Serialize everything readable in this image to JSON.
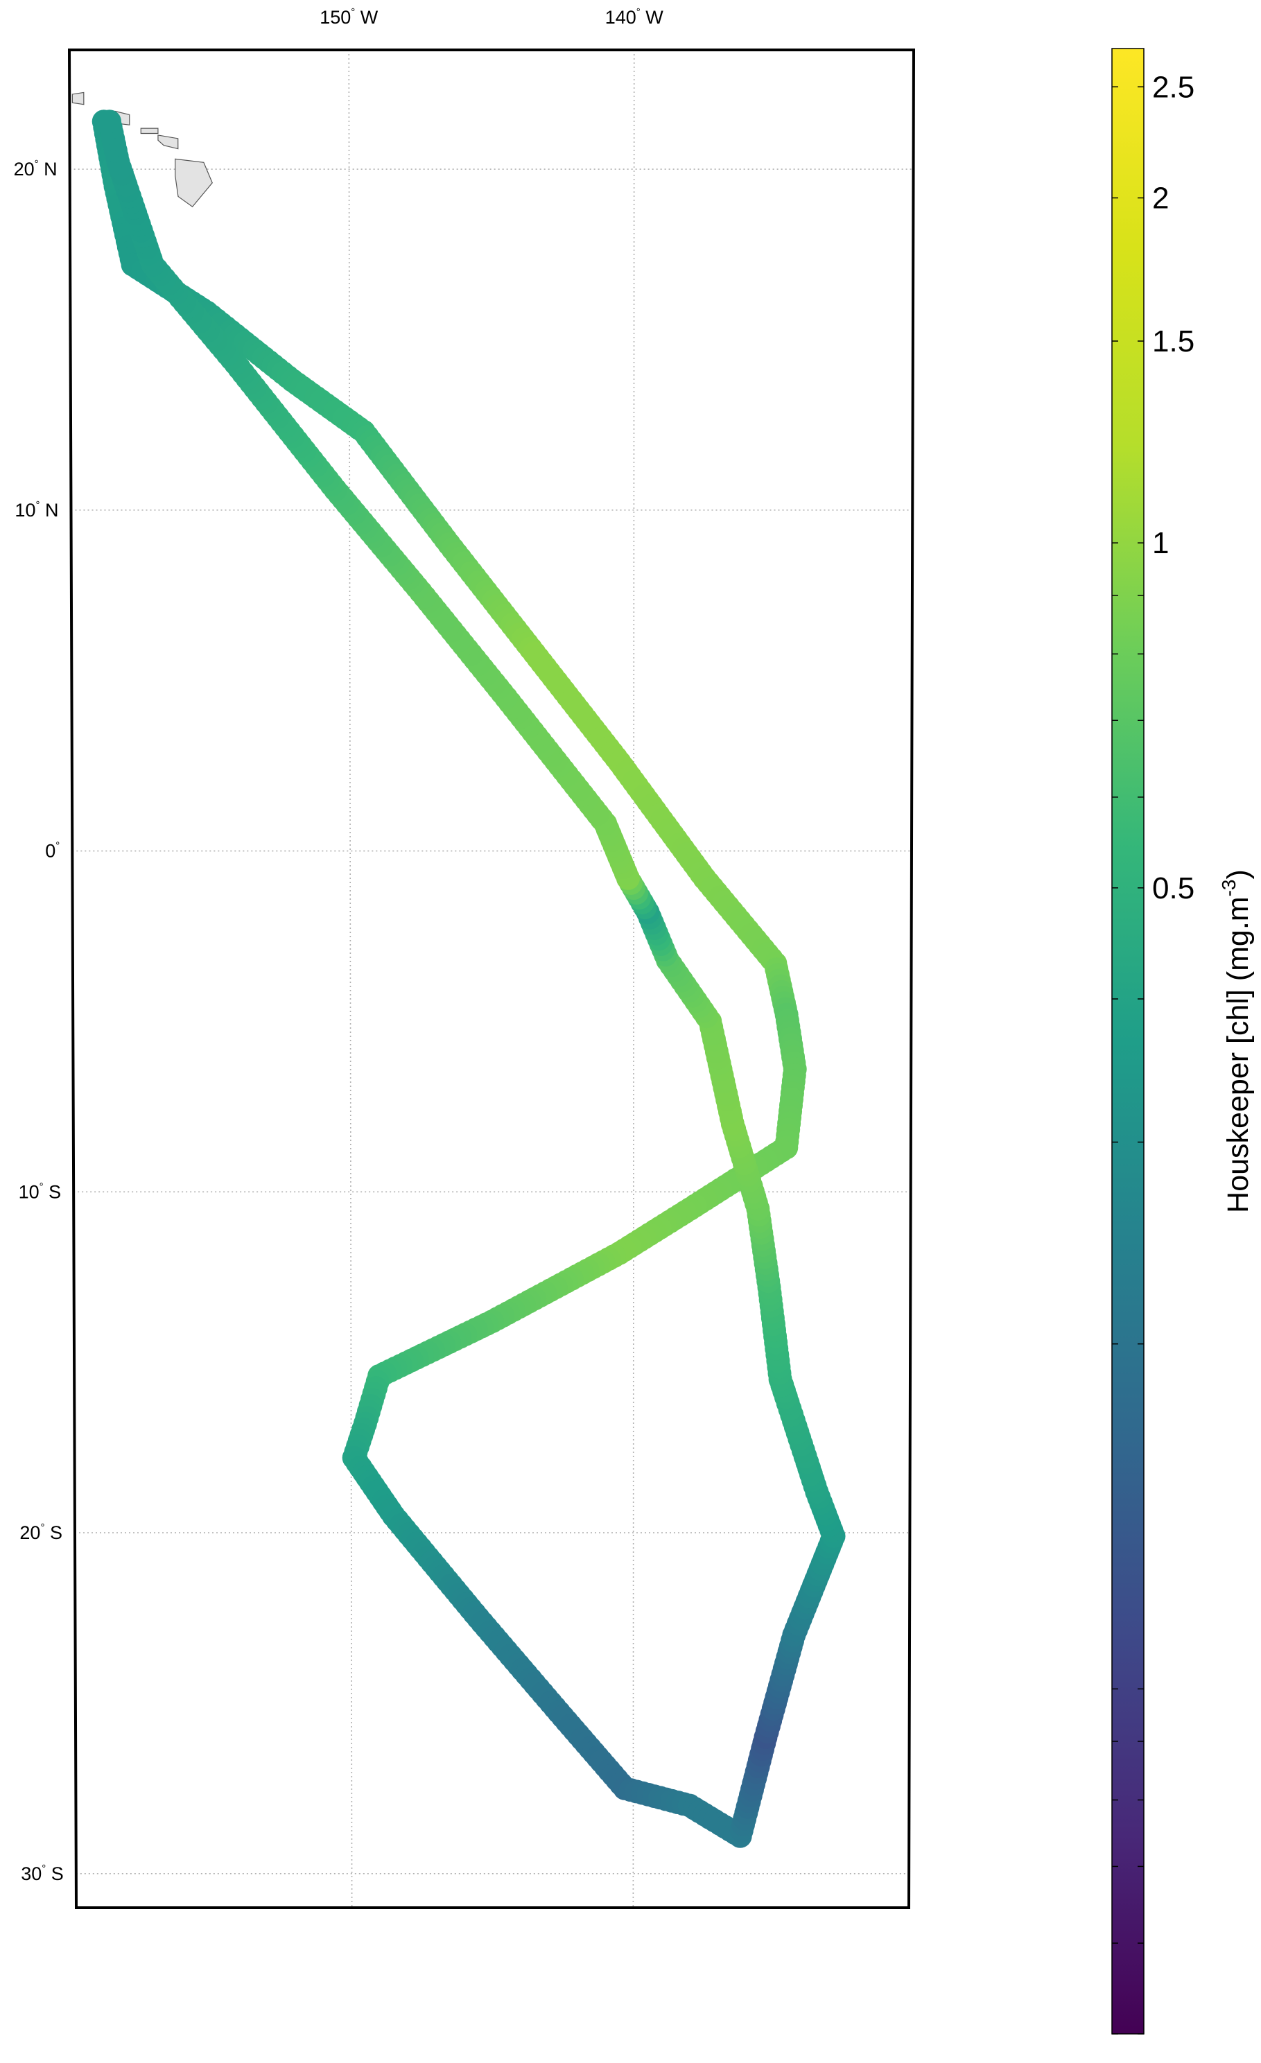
{
  "map": {
    "lon_range": [
      -159.8,
      -130.2
    ],
    "lat_range": [
      -31,
      23.5
    ],
    "lon_ticks": [
      {
        "value": -150,
        "label": "150",
        "hemi": "W"
      },
      {
        "value": -140,
        "label": "140",
        "hemi": "W"
      }
    ],
    "lat_ticks": [
      {
        "value": 20,
        "label": "20",
        "hemi": "N"
      },
      {
        "value": 10,
        "label": "10",
        "hemi": "N"
      },
      {
        "value": 0,
        "label": "0",
        "hemi": ""
      },
      {
        "value": -10,
        "label": "10",
        "hemi": "S"
      },
      {
        "value": -20,
        "label": "20",
        "hemi": "S"
      },
      {
        "value": -30,
        "label": "30",
        "hemi": "S"
      }
    ],
    "land_color": "#e3e3e3",
    "grid": true
  },
  "colorbar": {
    "title_main": "Houskeeper [chl] (mg.m",
    "title_exp": "-3",
    "title_close": ")",
    "range": [
      0.05,
      2.7
    ],
    "scale": "log",
    "colormap": "viridis",
    "labels": [
      {
        "value": 2.5,
        "text": "2.5"
      },
      {
        "value": 2,
        "text": "2"
      },
      {
        "value": 1.5,
        "text": "1.5"
      },
      {
        "value": 1,
        "text": "1"
      },
      {
        "value": 0.5,
        "text": "0.5"
      }
    ],
    "minor_ticks": [
      2.5,
      2,
      1.5,
      1,
      0.9,
      0.8,
      0.7,
      0.6,
      0.5,
      0.4,
      0.3,
      0.2,
      0.1,
      0.09,
      0.08,
      0.07,
      0.06,
      0.05
    ]
  },
  "cruise_track": {
    "points": [
      {
        "lon": -158.6,
        "lat": 21.4,
        "chl": 0.35
      },
      {
        "lon": -158.2,
        "lat": 19.5,
        "chl": 0.38
      },
      {
        "lon": -157.6,
        "lat": 17.2,
        "chl": 0.36
      },
      {
        "lon": -155.0,
        "lat": 15.8,
        "chl": 0.4
      },
      {
        "lon": -152.0,
        "lat": 13.8,
        "chl": 0.5
      },
      {
        "lon": -149.5,
        "lat": 12.3,
        "chl": 0.55
      },
      {
        "lon": -146.5,
        "lat": 9.0,
        "chl": 0.75
      },
      {
        "lon": -143.5,
        "lat": 5.8,
        "chl": 0.95
      },
      {
        "lon": -140.5,
        "lat": 2.6,
        "chl": 0.95
      },
      {
        "lon": -137.5,
        "lat": -0.8,
        "chl": 0.9
      },
      {
        "lon": -135.0,
        "lat": -3.3,
        "chl": 0.85
      },
      {
        "lon": -134.6,
        "lat": -4.8,
        "chl": 0.7
      },
      {
        "lon": -134.3,
        "lat": -6.4,
        "chl": 0.75
      },
      {
        "lon": -134.6,
        "lat": -8.7,
        "chl": 0.8
      },
      {
        "lon": -138.0,
        "lat": -10.5,
        "chl": 0.85
      },
      {
        "lon": -140.5,
        "lat": -11.8,
        "chl": 0.9
      },
      {
        "lon": -145.0,
        "lat": -13.8,
        "chl": 0.7
      },
      {
        "lon": -149.0,
        "lat": -15.4,
        "chl": 0.55
      },
      {
        "lon": -149.5,
        "lat": -16.8,
        "chl": 0.45
      },
      {
        "lon": -149.9,
        "lat": -17.8,
        "chl": 0.4
      },
      {
        "lon": -148.5,
        "lat": -19.5,
        "chl": 0.35
      },
      {
        "lon": -145.5,
        "lat": -22.5,
        "chl": 0.25
      },
      {
        "lon": -142.5,
        "lat": -25.4,
        "chl": 0.2
      },
      {
        "lon": -140.3,
        "lat": -27.5,
        "chl": 0.18
      },
      {
        "lon": -138.0,
        "lat": -28.0,
        "chl": 0.22
      },
      {
        "lon": -136.2,
        "lat": -28.9,
        "chl": 0.22
      },
      {
        "lon": -135.3,
        "lat": -26.0,
        "chl": 0.13
      },
      {
        "lon": -134.3,
        "lat": -23.0,
        "chl": 0.22
      },
      {
        "lon": -132.9,
        "lat": -20.1,
        "chl": 0.35
      },
      {
        "lon": -133.5,
        "lat": -18.8,
        "chl": 0.4
      },
      {
        "lon": -134.8,
        "lat": -15.5,
        "chl": 0.5
      },
      {
        "lon": -135.2,
        "lat": -12.8,
        "chl": 0.6
      },
      {
        "lon": -135.6,
        "lat": -10.5,
        "chl": 0.8
      },
      {
        "lon": -136.5,
        "lat": -8.0,
        "chl": 0.9
      },
      {
        "lon": -137.3,
        "lat": -5.0,
        "chl": 0.85
      },
      {
        "lon": -138.8,
        "lat": -3.2,
        "chl": 0.7
      },
      {
        "lon": -139.5,
        "lat": -1.8,
        "chl": 0.4
      },
      {
        "lon": -140.2,
        "lat": -0.8,
        "chl": 0.9
      },
      {
        "lon": -141.0,
        "lat": 0.8,
        "chl": 0.85
      },
      {
        "lon": -144.5,
        "lat": 4.5,
        "chl": 0.8
      },
      {
        "lon": -147.5,
        "lat": 7.6,
        "chl": 0.75
      },
      {
        "lon": -150.5,
        "lat": 10.6,
        "chl": 0.6
      },
      {
        "lon": -154.0,
        "lat": 14.3,
        "chl": 0.45
      },
      {
        "lon": -156.9,
        "lat": 17.2,
        "chl": 0.38
      },
      {
        "lon": -158.1,
        "lat": 20.2,
        "chl": 0.35
      },
      {
        "lon": -158.4,
        "lat": 21.4,
        "chl": 0.35
      }
    ]
  }
}
